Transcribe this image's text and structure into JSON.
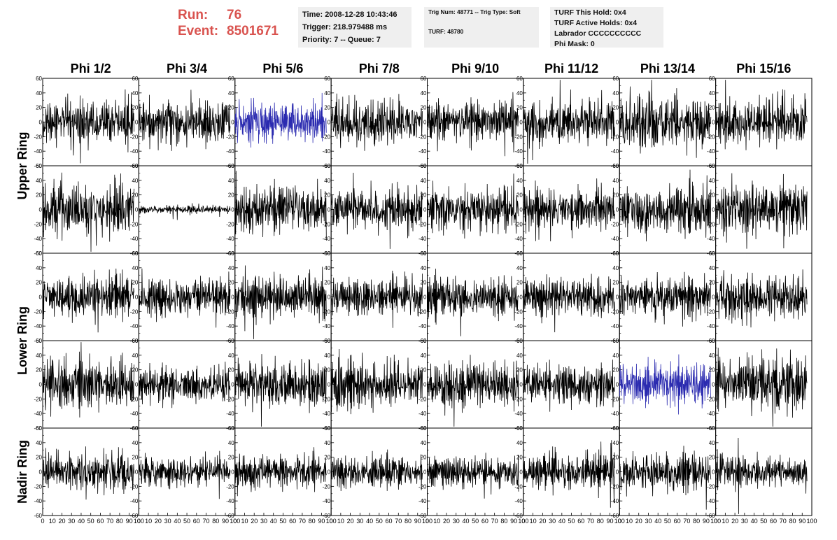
{
  "header": {
    "run_label": "Run:",
    "run_value": "76",
    "event_label": "Event:",
    "event_value": "8501671",
    "time": "Time: 2008-12-28 10:43:46",
    "trigger": "Trigger: 218.979488 ms",
    "priority": "Priority: 7 -- Queue: 7",
    "trig_num": "Trig Num: 48771 -- Trig Type: Soft",
    "turf": "TURF: 48780",
    "turf_hold": "TURF This Hold: 0x4",
    "turf_active": "TURF Active Holds: 0x4",
    "labrador": "Labrador CCCCCCCCCC",
    "phi_mask": "Phi Mask: 0"
  },
  "chart_data": {
    "type": "line",
    "title": "",
    "columns": [
      "Phi 1/2",
      "Phi 3/4",
      "Phi 5/6",
      "Phi 7/8",
      "Phi 9/10",
      "Phi 11/12",
      "Phi 13/14",
      "Phi 15/16"
    ],
    "rings": [
      "Upper Ring",
      "Lower Ring",
      "Nadir Ring"
    ],
    "rows_per_ring": [
      2,
      2,
      1
    ],
    "xlim": [
      0,
      100
    ],
    "ylim": [
      -60,
      60
    ],
    "xticks": [
      0,
      10,
      20,
      30,
      40,
      50,
      60,
      70,
      80,
      90,
      100
    ],
    "yticks": [
      60,
      40,
      20,
      0,
      -20,
      -40,
      -60
    ],
    "x_tick_labels": [
      "0",
      "10",
      "20",
      "30",
      "40",
      "50",
      "60",
      "70",
      "80",
      "90",
      "100"
    ],
    "y_tick_labels": [
      "60",
      "40",
      "20",
      "0",
      "-20",
      "-40",
      "-60"
    ],
    "samples_per_trace": 260,
    "trace_x_range": [
      0,
      95
    ],
    "colors": {
      "normal": "#000000",
      "highlight": "#2b2bb0"
    },
    "highlighted": [
      {
        "row": 0,
        "col": 2
      },
      {
        "row": 3,
        "col": 6
      }
    ],
    "amplitude_grid": [
      [
        18,
        16,
        16,
        18,
        18,
        16,
        20,
        18
      ],
      [
        20,
        3,
        18,
        16,
        18,
        16,
        18,
        20
      ],
      [
        16,
        15,
        17,
        15,
        15,
        15,
        16,
        17
      ],
      [
        19,
        14,
        18,
        19,
        18,
        15,
        17,
        21
      ],
      [
        15,
        12,
        13,
        12,
        12,
        14,
        15,
        12
      ]
    ],
    "grid": false,
    "legend": "none"
  }
}
